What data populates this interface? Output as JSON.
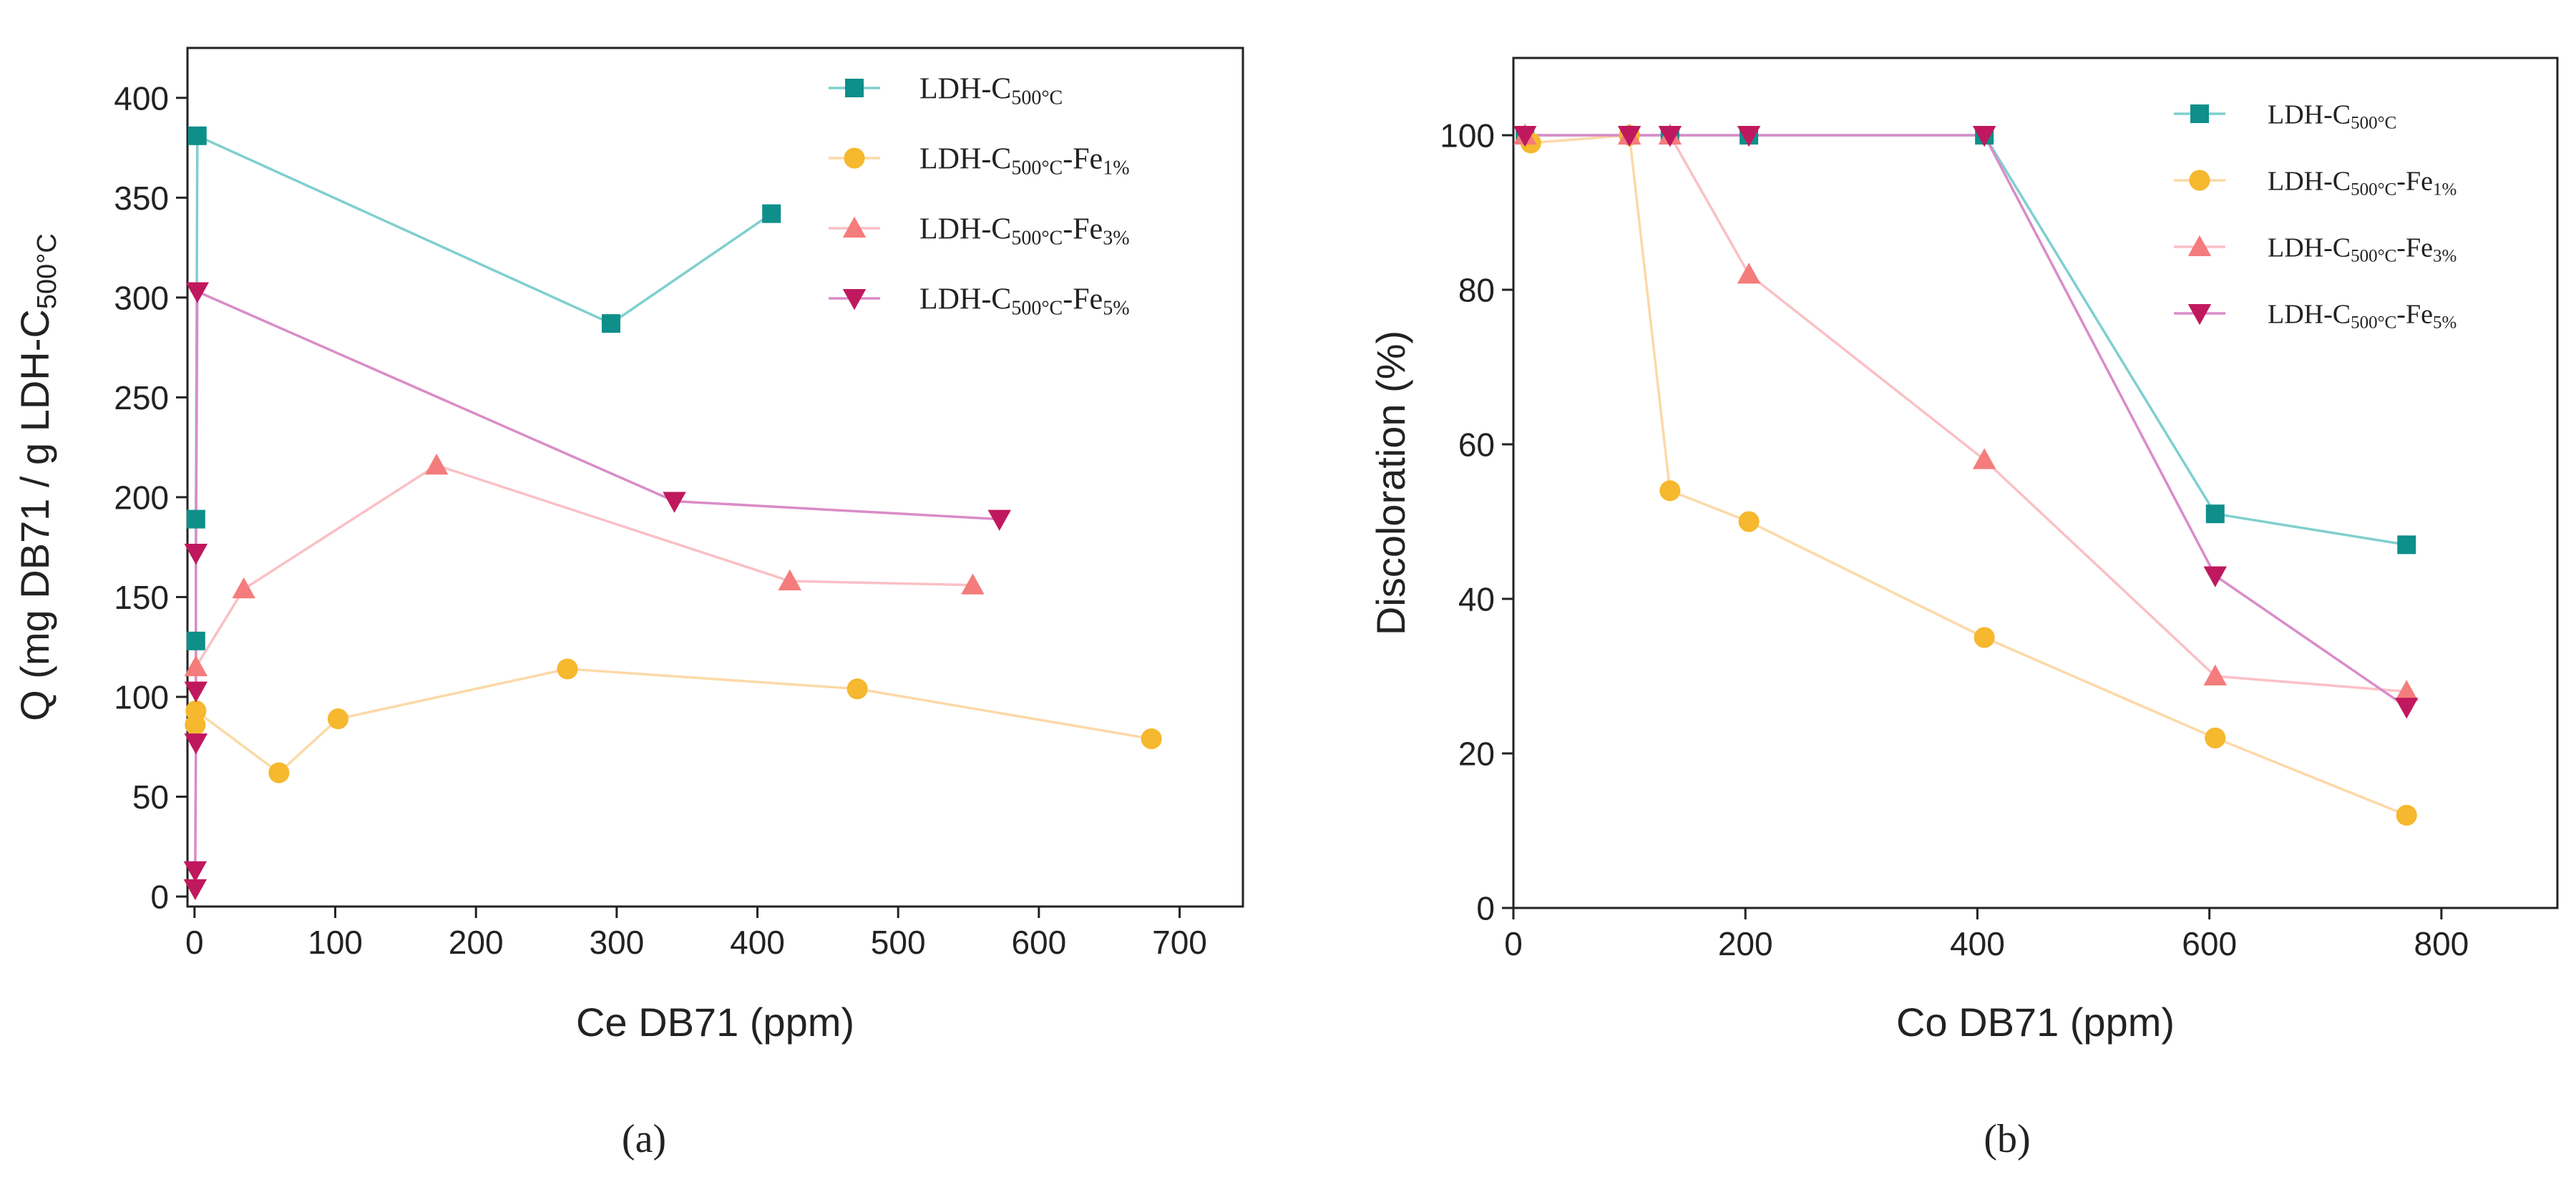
{
  "chart_data": [
    {
      "type": "line",
      "panel_label": "(a)",
      "xlabel": "Ce DB71 (ppm)",
      "ylabel": "Q (mg DB71 / g LDH-C500°C",
      "ylabel_parts": [
        {
          "text": "Q (mg DB71 / g LDH-C",
          "sub": false
        },
        {
          "text": "500°C",
          "sub": true
        }
      ],
      "xlim": [
        -5,
        745
      ],
      "ylim": [
        -5,
        425
      ],
      "xticks": [
        0,
        100,
        200,
        300,
        400,
        500,
        600,
        700
      ],
      "yticks": [
        0,
        50,
        100,
        150,
        200,
        250,
        300,
        350,
        400
      ],
      "grid": false,
      "legend_position": "top-right",
      "series": [
        {
          "name": "LDH-C500°C",
          "name_parts": [
            {
              "text": "LDH-C",
              "sub": false
            },
            {
              "text": "500°C",
              "sub": true
            }
          ],
          "color": "#0e8f8a",
          "line_color": "#7fcfcf",
          "marker": "square",
          "x": [
            1,
            1,
            2,
            296,
            410
          ],
          "y": [
            128,
            189,
            381,
            287,
            342
          ]
        },
        {
          "name": "LDH-C500°C-Fe1%",
          "name_parts": [
            {
              "text": "LDH-C",
              "sub": false
            },
            {
              "text": "500°C",
              "sub": true
            },
            {
              "text": "-Fe",
              "sub": false
            },
            {
              "text": "1%",
              "sub": true
            }
          ],
          "color": "#f5b82e",
          "line_color": "#fcd9a8",
          "marker": "circle",
          "x": [
            0.5,
            1,
            60,
            102,
            265,
            471,
            680
          ],
          "y": [
            86,
            93,
            62,
            89,
            114,
            104,
            79
          ]
        },
        {
          "name": "LDH-C500°C-Fe3%",
          "name_parts": [
            {
              "text": "LDH-C",
              "sub": false
            },
            {
              "text": "500°C",
              "sub": true
            },
            {
              "text": "-Fe",
              "sub": false
            },
            {
              "text": "3%",
              "sub": true
            }
          ],
          "color": "#f47c7c",
          "line_color": "#f9c0c5",
          "marker": "triangle-up",
          "x": [
            1,
            35,
            172,
            423,
            553
          ],
          "y": [
            115,
            154,
            216,
            158,
            156
          ]
        },
        {
          "name": "LDH-C500°C-Fe5%",
          "name_parts": [
            {
              "text": "LDH-C",
              "sub": false
            },
            {
              "text": "500°C",
              "sub": true
            },
            {
              "text": "-Fe",
              "sub": false
            },
            {
              "text": "5%",
              "sub": true
            }
          ],
          "color": "#c0185e",
          "line_color": "#d98cc8",
          "marker": "triangle-down",
          "x": [
            0.5,
            0.5,
            1,
            1,
            1,
            2,
            341,
            572
          ],
          "y": [
            4,
            13,
            77,
            103,
            172,
            303,
            198,
            189
          ]
        }
      ]
    },
    {
      "type": "line",
      "panel_label": "(b)",
      "xlabel": "Co DB71 (ppm)",
      "ylabel": "Discoloration (%)",
      "ylabel_parts": [
        {
          "text": "Discoloration (%)",
          "sub": false
        }
      ],
      "xlim": [
        0,
        900
      ],
      "ylim": [
        0,
        110
      ],
      "xticks": [
        0,
        200,
        400,
        600,
        800
      ],
      "yticks": [
        0,
        20,
        40,
        60,
        80,
        100
      ],
      "grid": false,
      "legend_position": "top-right",
      "series": [
        {
          "name": "LDH-C500°C",
          "name_parts": [
            {
              "text": "LDH-C",
              "sub": false
            },
            {
              "text": "500°C",
              "sub": true
            }
          ],
          "color": "#0e8f8a",
          "line_color": "#7fcfcf",
          "marker": "square",
          "x": [
            10,
            100,
            135,
            203,
            406,
            605,
            770
          ],
          "y": [
            100,
            100,
            100,
            100,
            100,
            51,
            47
          ]
        },
        {
          "name": "LDH-C500°C-Fe1%",
          "name_parts": [
            {
              "text": "LDH-C",
              "sub": false
            },
            {
              "text": "500°C",
              "sub": true
            },
            {
              "text": "-Fe",
              "sub": false
            },
            {
              "text": "1%",
              "sub": true
            }
          ],
          "color": "#f5b82e",
          "line_color": "#fcd9a8",
          "marker": "circle",
          "x": [
            15,
            100,
            135,
            203,
            406,
            605,
            770
          ],
          "y": [
            99,
            100,
            54,
            50,
            35,
            22,
            12
          ]
        },
        {
          "name": "LDH-C500°C-Fe3%",
          "name_parts": [
            {
              "text": "LDH-C",
              "sub": false
            },
            {
              "text": "500°C",
              "sub": true
            },
            {
              "text": "-Fe",
              "sub": false
            },
            {
              "text": "3%",
              "sub": true
            }
          ],
          "color": "#f47c7c",
          "line_color": "#f9c0c5",
          "marker": "triangle-up",
          "x": [
            10,
            100,
            135,
            203,
            406,
            605,
            770
          ],
          "y": [
            100,
            100,
            100,
            82,
            58,
            30,
            28
          ]
        },
        {
          "name": "LDH-C500°C-Fe5%",
          "name_parts": [
            {
              "text": "LDH-C",
              "sub": false
            },
            {
              "text": "500°C",
              "sub": true
            },
            {
              "text": "-Fe",
              "sub": false
            },
            {
              "text": "5%",
              "sub": true
            }
          ],
          "color": "#c0185e",
          "line_color": "#d98cc8",
          "marker": "triangle-down",
          "x": [
            10,
            100,
            135,
            203,
            406,
            605,
            770
          ],
          "y": [
            100,
            100,
            100,
            100,
            100,
            43,
            26
          ]
        }
      ]
    }
  ]
}
